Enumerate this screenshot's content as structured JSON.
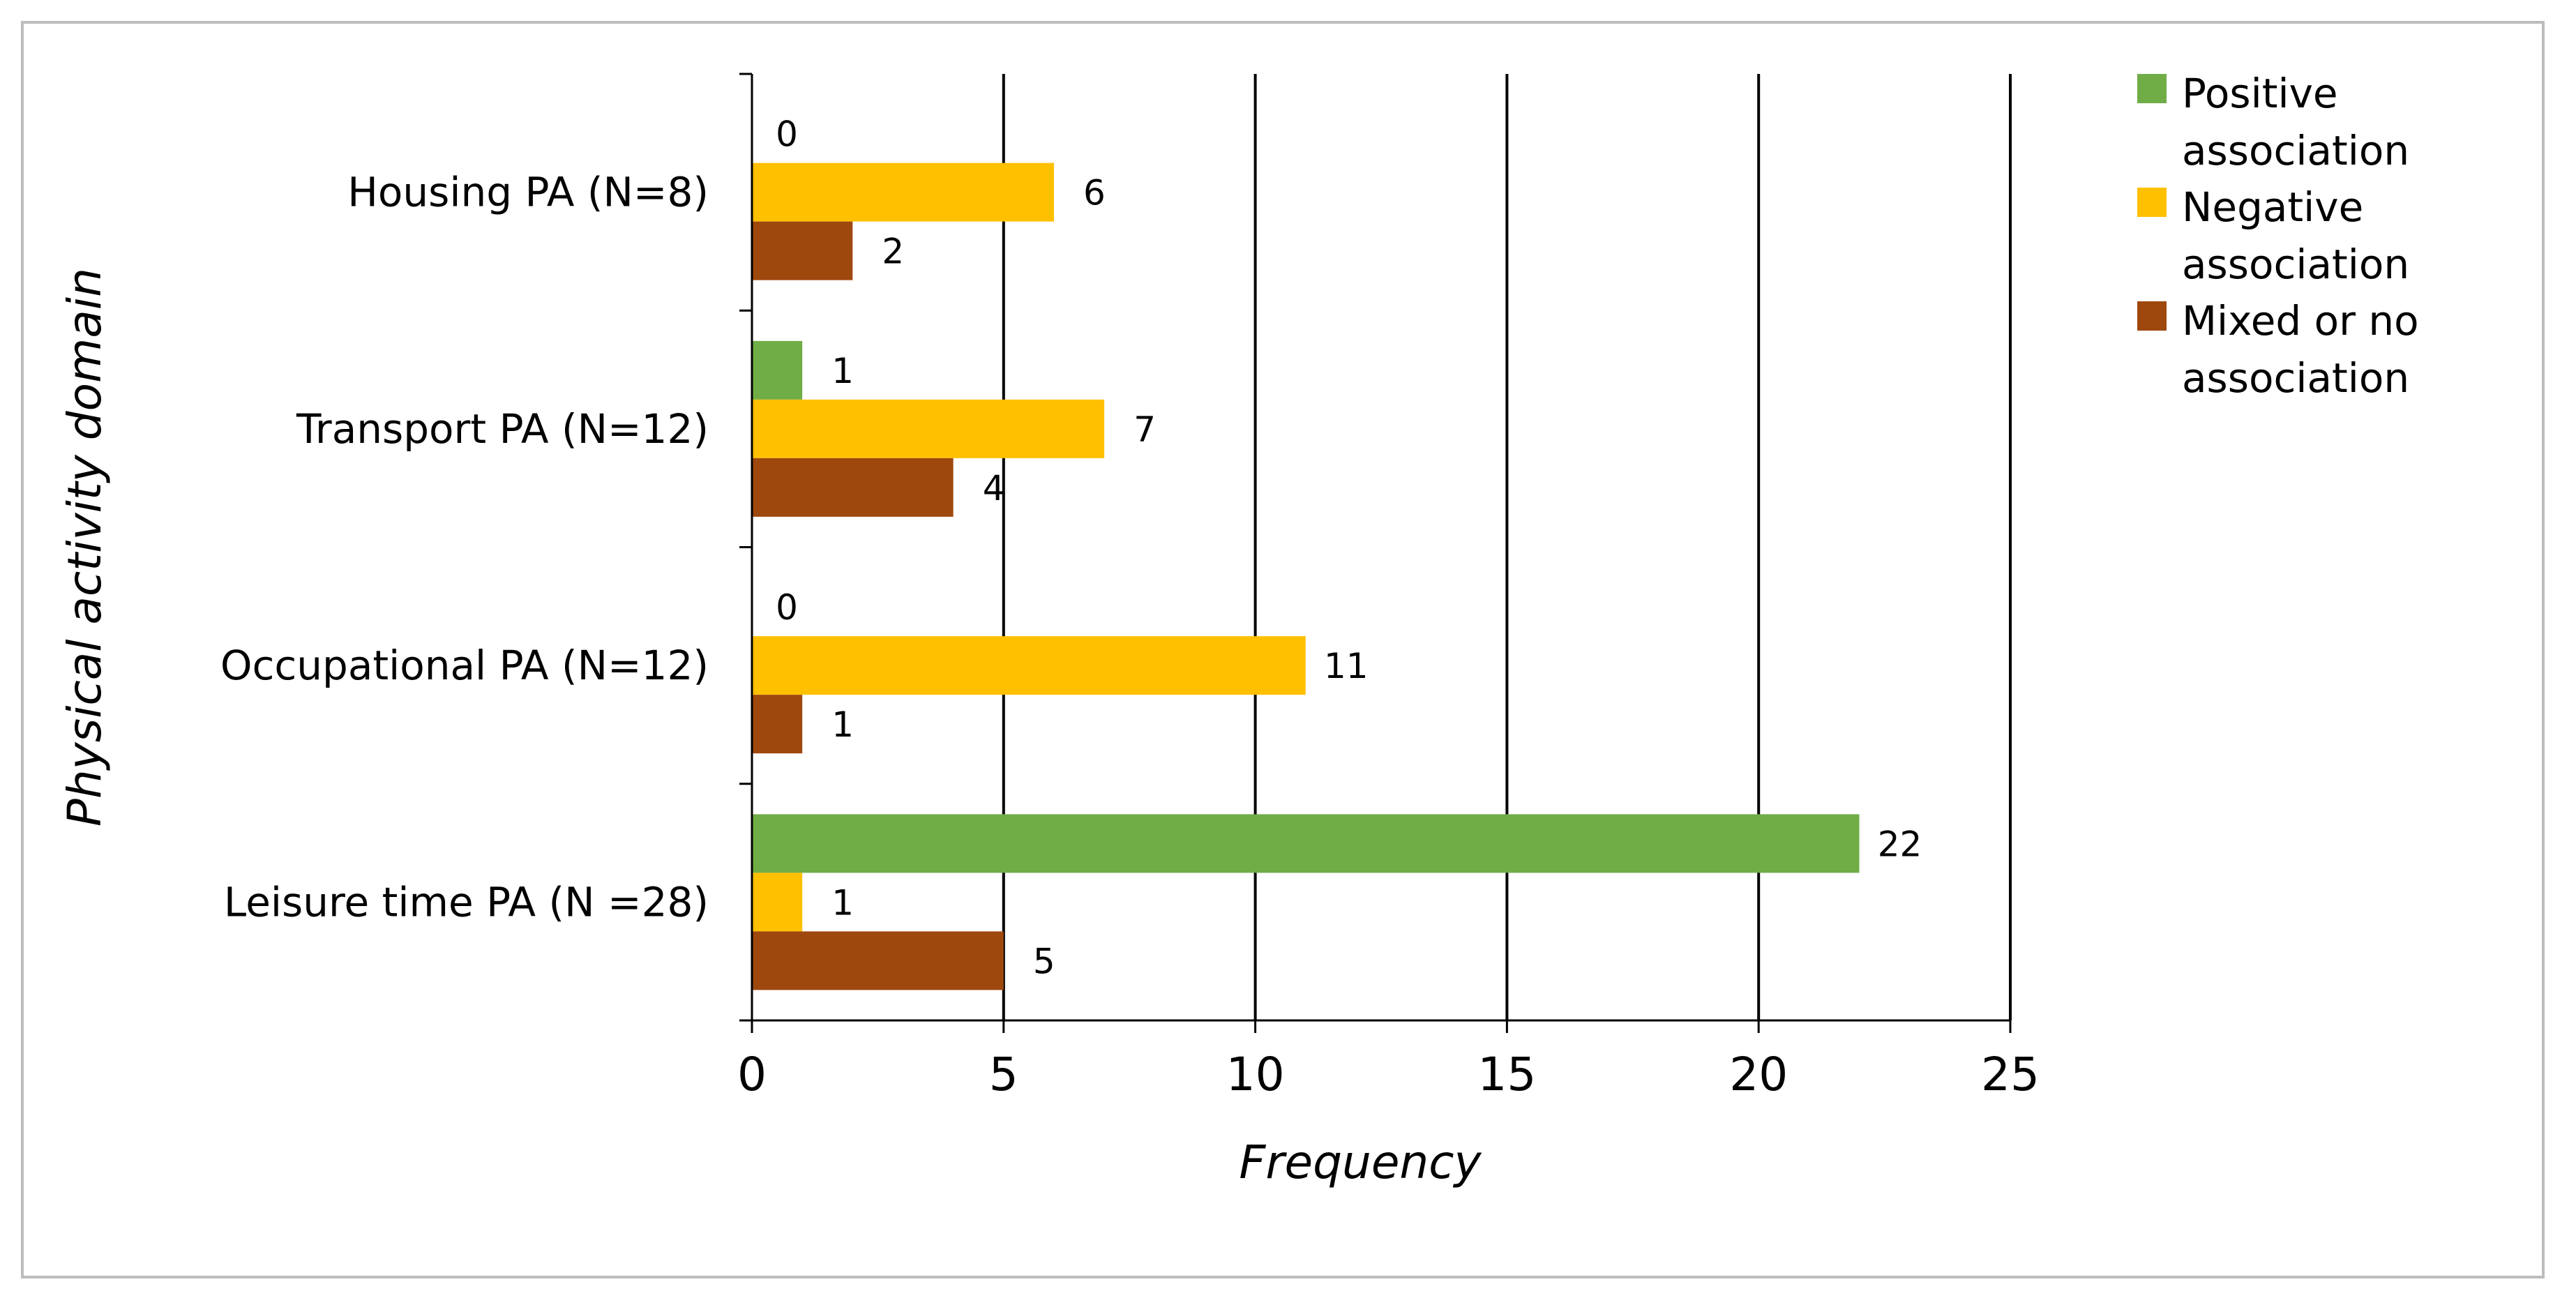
{
  "chart_data": {
    "type": "bar",
    "orientation": "horizontal",
    "categories": [
      "Housing PA (N=8)",
      "Transport PA (N=12)",
      "Occupational PA (N=12)",
      "Leisure time PA (N =28)"
    ],
    "series": [
      {
        "name": "Positive association",
        "color": "#70ad47",
        "values": [
          0,
          1,
          0,
          22
        ]
      },
      {
        "name": "Negative association",
        "color": "#ffc000",
        "values": [
          6,
          7,
          11,
          1
        ]
      },
      {
        "name": "Mixed or no association",
        "color": "#9e480e",
        "values": [
          2,
          4,
          1,
          5
        ]
      }
    ],
    "data_labels": [
      [
        "0",
        "1",
        "0",
        "22"
      ],
      [
        "6",
        "7",
        "11",
        "1"
      ],
      [
        "2",
        "4",
        "1",
        "5"
      ]
    ],
    "xlabel": "Frequency",
    "ylabel": "Physical activity domain",
    "xlim": [
      0,
      25
    ],
    "xticks": [
      "0",
      "5",
      "10",
      "15",
      "20",
      "25"
    ],
    "grid": "vertical",
    "legend_position": "right",
    "legend_entries": [
      [
        "Positive",
        "association"
      ],
      [
        "Negative",
        "association"
      ],
      [
        "Mixed or no",
        "association"
      ]
    ]
  }
}
